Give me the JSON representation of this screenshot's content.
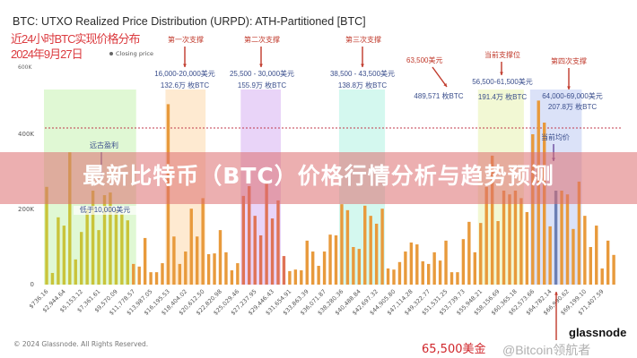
{
  "chart_data": {
    "type": "bar",
    "title": "BTC: UTXO Realized Price Distribution (URPD): ATH-Partitioned [BTC]",
    "legend": [
      "Closing price"
    ],
    "y_ticks": [
      "0",
      "200K",
      "400K"
    ],
    "y_extra_label": "600K",
    "ylim": [
      0,
      450000
    ],
    "bin_width": 736.16,
    "x_tick_labels": [
      "$736.16",
      "$2,944.64",
      "$5,153.12",
      "$7,361.61",
      "$9,570.09",
      "$11,778.57",
      "$13,987.05",
      "$16,195.53",
      "$18,404.02",
      "$20,612.50",
      "$22,820.98",
      "$25,029.46",
      "$27,237.95",
      "$29,446.43",
      "$31,654.91",
      "$33,863.39",
      "$36,071.87",
      "$38,280.36",
      "$40,488.84",
      "$42,697.32",
      "$44,905.80",
      "$47,114.28",
      "$49,322.77",
      "$51,531.25",
      "$53,739.73",
      "$55,948.21",
      "$58,156.69",
      "$60,365.18",
      "$62,573.66",
      "$64,782.14",
      "$66,990.62",
      "$69,199.10",
      "$71,407.59"
    ],
    "values": [
      260000,
      31000,
      179000,
      157000,
      352000,
      67000,
      140000,
      200000,
      250000,
      145000,
      238000,
      245000,
      200000,
      188000,
      171000,
      55000,
      48000,
      124000,
      33000,
      33000,
      57000,
      480000,
      128000,
      55000,
      88000,
      202000,
      128000,
      230000,
      81000,
      83000,
      145000,
      86000,
      38000,
      57000,
      236000,
      262000,
      183000,
      131000,
      271000,
      176000,
      224000,
      76000,
      36000,
      40000,
      38000,
      117000,
      88000,
      50000,
      88000,
      133000,
      131000,
      214000,
      198000,
      100000,
      95000,
      210000,
      183000,
      162000,
      202000,
      43000,
      40000,
      60000,
      88000,
      112000,
      107000,
      62000,
      55000,
      86000,
      64000,
      117000,
      33000,
      33000,
      121000,
      167000,
      86000,
      164000,
      260000,
      343000,
      169000,
      250000,
      240000,
      250000,
      230000,
      193000,
      400000,
      489571,
      431000,
      155000,
      250000,
      250000,
      240000,
      148000,
      274000,
      183000,
      100000,
      157000,
      43000,
      117000,
      79000
    ],
    "highlight_bar_index": 88,
    "reference_line": "dotted-red",
    "colors": {
      "early": "#c9c43a",
      "mid": "#e89a3c",
      "red": "#df7356",
      "current": "#6c7fb4",
      "ref": "#c0394b"
    },
    "bands": [
      {
        "from": 0,
        "to": 15,
        "color": "#d6f5c6"
      },
      {
        "from": 21,
        "to": 27,
        "color": "#fde3c2"
      },
      {
        "from": 34,
        "to": 40,
        "color": "#e2c6f5"
      },
      {
        "from": 51,
        "to": 58,
        "color": "#c6f5ea"
      },
      {
        "from": 75,
        "to": 82,
        "color": "#eef5c6"
      },
      {
        "from": 84,
        "to": 92,
        "color": "#cfd8f5"
      }
    ]
  },
  "overlay": {
    "line1": "近24小时BTC实现价格分布",
    "line2": "2024年9月27日"
  },
  "annotations": {
    "s1": {
      "label": "第一次支撑",
      "range": "16,000-20,000美元",
      "amount": "132.6万 枚BTC"
    },
    "s2": {
      "label": "第二次支撑",
      "range": "25,500 - 30,000美元",
      "amount": "155.9万 枚BTC"
    },
    "s3": {
      "label": "第三次支撑",
      "range": "38,500 - 43,500美元",
      "amount": "138.8万 枚BTC"
    },
    "p635": {
      "label": "63,500美元",
      "amount": "489,571 枚BTC"
    },
    "cur": {
      "label": "当前支撑位",
      "range": "56,500-61,500美元",
      "amount": "191.4万 枚BTC"
    },
    "s4": {
      "label": "第四次支撑",
      "range": "64,000-69,000美元",
      "amount": "207.8万 枚BTC"
    },
    "avg": {
      "label": "当前均价"
    },
    "ancient": {
      "label": "远古盈利",
      "sub": "低于10,000美元"
    },
    "bottom": {
      "label": "65,500美金"
    }
  },
  "banner": "最新比特币（BTC）价格行情分析与趋势预测",
  "footer": "© 2024 Glassnode. All Rights Reserved.",
  "logo": "glassnode",
  "watermark": "@Bitcoin领航者"
}
